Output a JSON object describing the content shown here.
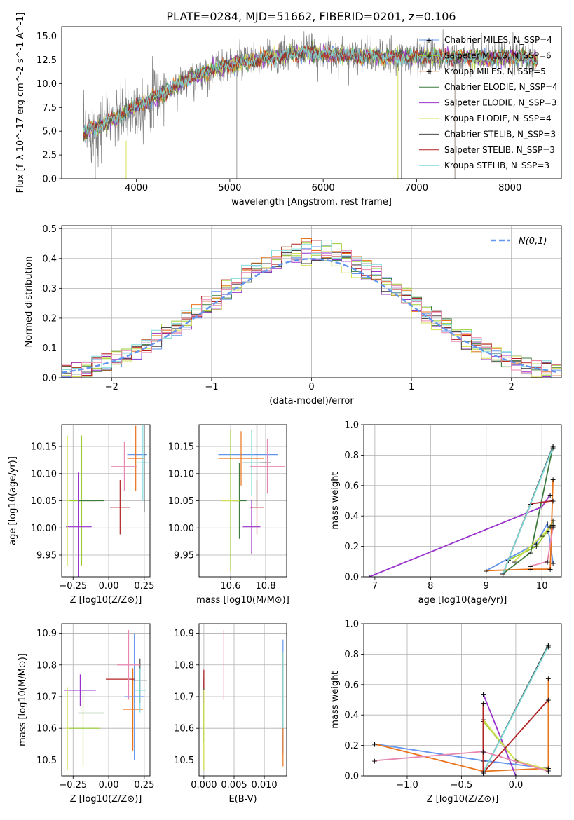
{
  "figure": {
    "title": "PLATE=0284, MJD=51662, FIBERID=0201, z=0.106"
  },
  "chart_data": [
    {
      "id": "spectrum",
      "type": "line",
      "xlabel": "wavelength [Angstrom, rest frame]",
      "ylabel": "Flux [f_λ 10^-17 erg cm^-2 s^-1 A^-1]",
      "xlim": [
        3200,
        8550
      ],
      "ylim": [
        0,
        16
      ],
      "xticks": [
        4000,
        5000,
        6000,
        7000,
        8000
      ],
      "yticks": [
        0.0,
        2.5,
        5.0,
        7.5,
        10.0,
        12.5,
        15.0
      ],
      "grid": false,
      "legend_position": "right",
      "continuum_anchors": {
        "x": [
          3430,
          3600,
          3800,
          3950,
          4100,
          4300,
          4500,
          4800,
          5100,
          5500,
          5800,
          6200,
          6600,
          7000,
          7400,
          7800,
          8100,
          8300
        ],
        "y": [
          4.8,
          5.5,
          6.5,
          7.3,
          8.2,
          9.0,
          10.2,
          11.5,
          12.2,
          12.8,
          13.3,
          13.0,
          12.8,
          12.8,
          12.8,
          12.7,
          12.8,
          12.5
        ]
      },
      "series": [
        {
          "name": "Chabrier MILES, N_SSP=4",
          "color": "#6495ed"
        },
        {
          "name": "Salpeter MILES, N_SSP=6",
          "color": "#9acd32"
        },
        {
          "name": "Kroupa MILES, N_SSP=5",
          "color": "#e8731a"
        },
        {
          "name": "Chabrier ELODIE, N_SSP=4",
          "color": "#3d7a3d"
        },
        {
          "name": "Salpeter ELODIE, N_SSP=3",
          "color": "#9932cc"
        },
        {
          "name": "Kroupa ELODIE, N_SSP=4",
          "color": "#d4e157"
        },
        {
          "name": "Chabrier STELIB, N_SSP=3",
          "color": "#4a4a4a"
        },
        {
          "name": "Salpeter STELIB, N_SSP=3",
          "color": "#b22222"
        },
        {
          "name": "Kroupa STELIB, N_SSP=3",
          "color": "#7fdbdb"
        }
      ]
    },
    {
      "id": "residuals",
      "type": "line",
      "xlabel": "(data-model)/error",
      "ylabel": "Normed distribution",
      "xlim": [
        -2.5,
        2.5
      ],
      "ylim": [
        0,
        0.51
      ],
      "xticks": [
        -2,
        -1,
        0,
        1,
        2
      ],
      "yticks": [
        0.0,
        0.1,
        0.2,
        0.3,
        0.4,
        0.5
      ],
      "grid": true,
      "legend_position": "upper right",
      "bin_width": 0.1,
      "gaussian": {
        "label": "N(0,1)",
        "color": "#6495ed",
        "mu": 0,
        "sigma": 1
      },
      "histogram_colors": [
        "#6495ed",
        "#9acd32",
        "#e8731a",
        "#3d7a3d",
        "#9932cc",
        "#d4e157",
        "#4a4a4a",
        "#b22222",
        "#7fdbdb",
        "#e887b0"
      ]
    },
    {
      "id": "age_vs_Z",
      "type": "scatter",
      "xlabel": "Z [log10(Z/Z⊙)]",
      "ylabel": "age  [log10(age/yr)]",
      "xlim": [
        -0.33,
        0.29
      ],
      "ylim": [
        9.91,
        10.19
      ],
      "xticks": [
        -0.25,
        0.0,
        0.25
      ],
      "yticks": [
        9.95,
        10.0,
        10.05,
        10.1,
        10.15
      ],
      "grid": true,
      "points": [
        {
          "x": 0.2,
          "y": 10.135,
          "xerr": 0.07,
          "yerr": 0.0,
          "color": "#6495ed"
        },
        {
          "x": -0.19,
          "y": 10.05,
          "xerr": 0.09,
          "yerr": 0.12,
          "color": "#9acd32"
        },
        {
          "x": 0.19,
          "y": 10.128,
          "xerr": 0.06,
          "yerr": 0.06,
          "color": "#e8731a"
        },
        {
          "x": -0.12,
          "y": 10.05,
          "xerr": 0.09,
          "yerr": 0.0,
          "color": "#3d7a3d"
        },
        {
          "x": -0.21,
          "y": 10.002,
          "xerr": 0.09,
          "yerr": 0.1,
          "color": "#9932cc"
        },
        {
          "x": -0.29,
          "y": 10.05,
          "xerr": 0.01,
          "yerr": 0.12,
          "color": "#d4e157"
        },
        {
          "x": 0.25,
          "y": 10.12,
          "xerr": 0.01,
          "yerr": 0.09,
          "color": "#4a4a4a"
        },
        {
          "x": 0.08,
          "y": 10.038,
          "xerr": 0.07,
          "yerr": 0.05,
          "color": "#b22222"
        },
        {
          "x": 0.24,
          "y": 10.12,
          "xerr": 0.04,
          "yerr": 0.07,
          "color": "#7fdbdb"
        },
        {
          "x": 0.11,
          "y": 10.113,
          "xerr": 0.09,
          "yerr": 0.045,
          "color": "#e887b0"
        }
      ]
    },
    {
      "id": "age_vs_mass",
      "type": "scatter",
      "xlabel": "mass [log10(M/M⊙)]",
      "ylabel": "",
      "xlim": [
        10.42,
        10.92
      ],
      "ylim": [
        9.91,
        10.19
      ],
      "xticks": [
        10.6,
        10.8
      ],
      "yticks": [
        9.95,
        10.0,
        10.05,
        10.1,
        10.15
      ],
      "grid": true,
      "points": [
        {
          "x": 10.7,
          "y": 10.135,
          "xerr": 0.17,
          "yerr": 0.0,
          "color": "#6495ed"
        },
        {
          "x": 10.6,
          "y": 10.05,
          "xerr": 0.05,
          "yerr": 0.13,
          "color": "#9acd32"
        },
        {
          "x": 10.66,
          "y": 10.128,
          "xerr": 0.13,
          "yerr": 0.05,
          "color": "#e8731a"
        },
        {
          "x": 10.65,
          "y": 10.05,
          "xerr": 0.04,
          "yerr": 0.07,
          "color": "#3d7a3d"
        },
        {
          "x": 10.72,
          "y": 10.002,
          "xerr": 0.05,
          "yerr": 0.05,
          "color": "#9932cc"
        },
        {
          "x": 10.6,
          "y": 10.05,
          "xerr": 0.05,
          "yerr": 0.0,
          "color": "#d4e157"
        },
        {
          "x": 10.75,
          "y": 10.12,
          "xerr": 0.08,
          "yerr": 0.08,
          "color": "#4a4a4a"
        },
        {
          "x": 10.75,
          "y": 10.038,
          "xerr": 0.04,
          "yerr": 0.05,
          "color": "#b22222"
        },
        {
          "x": 10.72,
          "y": 10.12,
          "xerr": 0.05,
          "yerr": 0.06,
          "color": "#7fdbdb"
        },
        {
          "x": 10.81,
          "y": 10.113,
          "xerr": 0.1,
          "yerr": 0.05,
          "color": "#e887b0"
        }
      ]
    },
    {
      "id": "weight_vs_age",
      "type": "line",
      "xlabel": "age  [log10(age/yr)]",
      "ylabel": "mass weight",
      "xlim": [
        6.8,
        10.35
      ],
      "ylim": [
        0,
        1
      ],
      "xticks": [
        7,
        8,
        9,
        10
      ],
      "yticks": [
        0.0,
        0.2,
        0.4,
        0.6,
        0.8,
        1.0
      ],
      "grid": true,
      "series": [
        {
          "color": "#6495ed",
          "x": [
            9.0,
            9.9,
            10.1,
            10.2
          ],
          "y": [
            0.04,
            0.22,
            0.35,
            0.09
          ]
        },
        {
          "color": "#9acd32",
          "x": [
            9.4,
            9.9,
            10.1,
            10.2
          ],
          "y": [
            0.11,
            0.2,
            0.3,
            0.37
          ]
        },
        {
          "color": "#e8731a",
          "x": [
            9.0,
            9.8,
            10.15,
            10.2
          ],
          "y": [
            0.04,
            0.05,
            0.05,
            0.64
          ]
        },
        {
          "color": "#3d7a3d",
          "x": [
            9.3,
            9.8,
            10.2
          ],
          "y": [
            0.02,
            0.16,
            0.86
          ]
        },
        {
          "color": "#9932cc",
          "x": [
            6.9,
            10.0,
            10.15
          ],
          "y": [
            0.0,
            0.46,
            0.54
          ]
        },
        {
          "color": "#d4e157",
          "x": [
            9.5,
            10.0,
            10.15,
            10.2
          ],
          "y": [
            0.1,
            0.27,
            0.33,
            0.34
          ]
        },
        {
          "color": "#4a4a4a",
          "x": [
            9.3,
            10.2
          ],
          "y": [
            0.02,
            0.86
          ]
        },
        {
          "color": "#b22222",
          "x": [
            9.3,
            9.8,
            10.2
          ],
          "y": [
            0.02,
            0.48,
            0.5
          ]
        },
        {
          "color": "#7fdbdb",
          "x": [
            9.3,
            10.2
          ],
          "y": [
            0.02,
            0.85
          ]
        },
        {
          "color": "#e887b0",
          "x": [
            9.8,
            10.1,
            10.2
          ],
          "y": [
            0.07,
            0.1,
            0.33
          ]
        }
      ]
    },
    {
      "id": "mass_vs_Z",
      "type": "scatter",
      "xlabel": "Z [log10(Z/Z⊙)]",
      "ylabel": "mass [log10(M/M⊙)]",
      "xlim": [
        -0.33,
        0.29
      ],
      "ylim": [
        10.45,
        10.93
      ],
      "xticks": [
        -0.25,
        0.0,
        0.25
      ],
      "yticks": [
        10.5,
        10.6,
        10.7,
        10.8,
        10.9
      ],
      "grid": true,
      "points": [
        {
          "x": 0.18,
          "y": 10.7,
          "xerr": 0.07,
          "yerr": 0.2,
          "color": "#6495ed"
        },
        {
          "x": -0.18,
          "y": 10.6,
          "xerr": 0.12,
          "yerr": 0.12,
          "color": "#9acd32"
        },
        {
          "x": 0.17,
          "y": 10.66,
          "xerr": 0.07,
          "yerr": 0.13,
          "color": "#e8731a"
        },
        {
          "x": -0.12,
          "y": 10.648,
          "xerr": 0.09,
          "yerr": 0.0,
          "color": "#3d7a3d"
        },
        {
          "x": -0.2,
          "y": 10.72,
          "xerr": 0.11,
          "yerr": 0.05,
          "color": "#9932cc"
        },
        {
          "x": -0.29,
          "y": 10.6,
          "xerr": 0.01,
          "yerr": 0.13,
          "color": "#d4e157"
        },
        {
          "x": 0.22,
          "y": 10.75,
          "xerr": 0.05,
          "yerr": 0.07,
          "color": "#4a4a4a"
        },
        {
          "x": 0.08,
          "y": 10.755,
          "xerr": 0.1,
          "yerr": 0.0,
          "color": "#b22222"
        },
        {
          "x": 0.22,
          "y": 10.72,
          "xerr": 0.04,
          "yerr": 0.07,
          "color": "#7fdbdb"
        },
        {
          "x": 0.14,
          "y": 10.8,
          "xerr": 0.08,
          "yerr": 0.11,
          "color": "#e887b0"
        }
      ]
    },
    {
      "id": "mass_vs_EBV",
      "type": "scatter",
      "xlabel": "E(B-V)",
      "ylabel": "",
      "xlim": [
        -0.0008,
        0.0137
      ],
      "ylim": [
        10.45,
        10.93
      ],
      "xticks": [
        0.0,
        0.005,
        0.01
      ],
      "xticklabels": [
        "0.000",
        "0.005",
        "0.010"
      ],
      "yticks": [
        10.5,
        10.6,
        10.7,
        10.8,
        10.9
      ],
      "grid": true,
      "points": [
        {
          "x": 0.0131,
          "y": 10.7,
          "xerr": 0,
          "yerr": 0.18,
          "color": "#6495ed"
        },
        {
          "x": 0.0,
          "y": 10.6,
          "xerr": 0,
          "yerr": 0.13,
          "color": "#9acd32"
        },
        {
          "x": 0.0131,
          "y": 10.66,
          "xerr": 0,
          "yerr": 0.18,
          "color": "#e8731a"
        },
        {
          "x": 0.0,
          "y": 10.648,
          "xerr": 0,
          "yerr": 0.09,
          "color": "#3d7a3d"
        },
        {
          "x": 0.0,
          "y": 10.72,
          "xerr": 0,
          "yerr": 0.04,
          "color": "#9932cc"
        },
        {
          "x": 0.0,
          "y": 10.6,
          "xerr": 0,
          "yerr": 0.13,
          "color": "#d4e157"
        },
        {
          "x": 0.0,
          "y": 10.75,
          "xerr": 0,
          "yerr": 0.03,
          "color": "#4a4a4a"
        },
        {
          "x": 0.0,
          "y": 10.755,
          "xerr": 0,
          "yerr": 0.03,
          "color": "#b22222"
        },
        {
          "x": 0.0131,
          "y": 10.72,
          "xerr": 0,
          "yerr": 0.12,
          "color": "#7fdbdb"
        },
        {
          "x": 0.0033,
          "y": 10.8,
          "xerr": 0,
          "yerr": 0.11,
          "color": "#e887b0"
        }
      ]
    },
    {
      "id": "weight_vs_Z",
      "type": "line",
      "xlabel": "Z [log10(Z/Z⊙)]",
      "ylabel": "mass weight",
      "xlim": [
        -1.4,
        0.42
      ],
      "ylim": [
        0,
        1
      ],
      "xticks": [
        -1.0,
        -0.5,
        0.0
      ],
      "yticks": [
        0.0,
        0.2,
        0.4,
        0.6,
        0.8,
        1.0
      ],
      "grid": true,
      "series": [
        {
          "color": "#6495ed",
          "x": [
            -1.3,
            -0.3,
            0.3
          ],
          "y": [
            0.21,
            0.1,
            0.05
          ]
        },
        {
          "color": "#9acd32",
          "x": [
            -0.3,
            0.0,
            0.3
          ],
          "y": [
            0.36,
            0.1,
            0.04
          ]
        },
        {
          "color": "#e8731a",
          "x": [
            -1.3,
            -0.3,
            0.3,
            0.3
          ],
          "y": [
            0.21,
            0.03,
            0.05,
            0.64
          ]
        },
        {
          "color": "#3d7a3d",
          "x": [
            -0.3,
            0.3
          ],
          "y": [
            0.02,
            0.86
          ]
        },
        {
          "color": "#9932cc",
          "x": [
            -0.3,
            0.0
          ],
          "y": [
            0.54,
            0.0
          ]
        },
        {
          "color": "#d4e157",
          "x": [
            -0.3,
            0.0,
            0.3
          ],
          "y": [
            0.37,
            0.1,
            0.04
          ]
        },
        {
          "color": "#4a4a4a",
          "x": [
            -0.3,
            0.3
          ],
          "y": [
            0.02,
            0.86
          ]
        },
        {
          "color": "#b22222",
          "x": [
            -0.3,
            -0.3,
            0.3
          ],
          "y": [
            0.48,
            0.02,
            0.5
          ]
        },
        {
          "color": "#7fdbdb",
          "x": [
            -0.3,
            0.3
          ],
          "y": [
            0.02,
            0.85
          ]
        },
        {
          "color": "#e887b0",
          "x": [
            -1.3,
            -0.3,
            0.3
          ],
          "y": [
            0.1,
            0.16,
            0.03
          ]
        }
      ]
    }
  ]
}
